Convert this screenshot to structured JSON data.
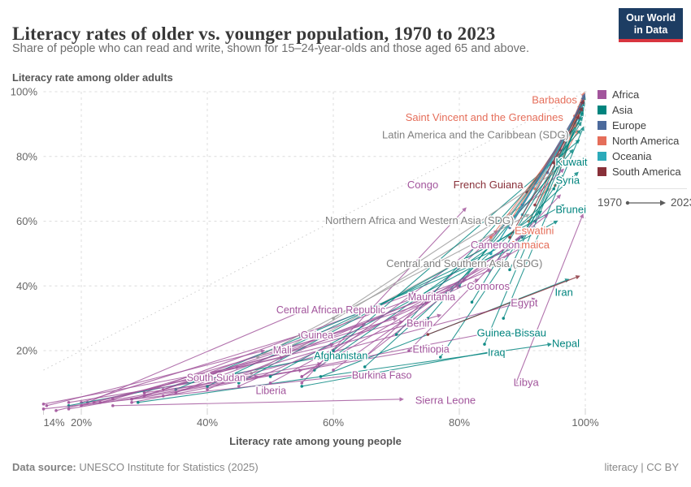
{
  "header": {
    "title": "Literacy rates of older vs. younger population, 1970 to 2023",
    "subtitle": "Share of people who can read and write, shown for 15–24-year-olds and those aged 65 and above.",
    "logo": {
      "line1": "Our World",
      "line2": "in Data"
    }
  },
  "footer": {
    "source_prefix": "Data source:",
    "source_text": " UNESCO Institute for Statistics (2025)",
    "right": "literacy | CC BY"
  },
  "chart_data": {
    "type": "connected-scatter",
    "title": "Literacy rates of older vs. younger population, 1970 to 2023",
    "x_axis": {
      "label": "Literacy rate among young people",
      "ticks": [
        14,
        20,
        40,
        60,
        80,
        100
      ],
      "range": [
        14,
        100
      ],
      "unit": "%"
    },
    "y_axis": {
      "label": "Literacy rate among older adults",
      "ticks": [
        20,
        40,
        60,
        80,
        100
      ],
      "range": [
        0,
        100
      ],
      "unit": "%"
    },
    "time": {
      "start": "1970",
      "end": "2023"
    },
    "grid": "dashed",
    "diagonal": {
      "from": [
        14,
        14
      ],
      "to": [
        100,
        100
      ]
    },
    "colors": {
      "africa": "#a2559c",
      "asia": "#00847e",
      "europe": "#4c6a9c",
      "north_america": "#e56e5a",
      "oceania": "#2caaba",
      "south_america": "#883039",
      "sdg": "#9a9a9a"
    },
    "legend": [
      {
        "label": "Africa",
        "color": "#a2559c"
      },
      {
        "label": "Asia",
        "color": "#00847e"
      },
      {
        "label": "Europe",
        "color": "#4c6a9c"
      },
      {
        "label": "North America",
        "color": "#e56e5a"
      },
      {
        "label": "Oceania",
        "color": "#2caaba"
      },
      {
        "label": "South America",
        "color": "#883039"
      }
    ],
    "series": [
      {
        "n": "Barbados",
        "c": "north_america",
        "s": [
          98.3,
          92.5
        ],
        "e": [
          99.8,
          99.6
        ],
        "l": {
          "x": 98.7,
          "y": 97.4,
          "a": "end",
          "sz": 13
        }
      },
      {
        "n": "Saint Vincent and the Grenadines",
        "c": "north_america",
        "s": [
          95.2,
          71
        ],
        "e": [
          99.2,
          96
        ],
        "l": {
          "x": 96.5,
          "y": 92.0,
          "a": "end",
          "sz": 13
        }
      },
      {
        "n": "Latin America and the Caribbean (SDG)",
        "c": "sdg",
        "s": [
          85,
          54
        ],
        "e": [
          98.8,
          90.5
        ],
        "l": {
          "x": 97.4,
          "y": 86.6,
          "a": "end",
          "sz": 13,
          "col": "#808080"
        }
      },
      {
        "n": "Kuwait",
        "c": "asia",
        "s": [
          84,
          22
        ],
        "e": [
          99.6,
          94
        ],
        "l": {
          "x": 97.8,
          "y": 78.2,
          "a": "middle",
          "sz": 13
        }
      },
      {
        "n": "Syria",
        "c": "asia",
        "s": [
          77,
          18
        ],
        "e": [
          96.3,
          74
        ],
        "l": {
          "x": 97.2,
          "y": 72.6,
          "a": "middle",
          "sz": 13
        }
      },
      {
        "n": "Congo",
        "c": "africa",
        "s": [
          55,
          10
        ],
        "e": [
          81,
          64
        ],
        "l": {
          "x": 74.2,
          "y": 71.2,
          "a": "middle",
          "sz": 13
        }
      },
      {
        "n": "French Guiana",
        "c": "south_america",
        "s": [
          90.7,
          69
        ],
        "e": [
          99,
          93
        ],
        "l": {
          "x": 84.6,
          "y": 71.2,
          "a": "middle",
          "sz": 13
        }
      },
      {
        "n": "Brunei",
        "c": "asia",
        "s": [
          87,
          30
        ],
        "e": [
          99.7,
          89
        ],
        "l": {
          "x": 97.7,
          "y": 63.5,
          "a": "middle",
          "sz": 13
        }
      },
      {
        "n": "Northern Africa and Western Asia (SDG)",
        "c": "sdg",
        "s": [
          52,
          20
        ],
        "e": [
          94.5,
          70
        ],
        "l": {
          "x": 73.7,
          "y": 60.1,
          "a": "middle",
          "sz": 13,
          "col": "#808080"
        }
      },
      {
        "n": "Eswatini",
        "c": "africa",
        "s": [
          65,
          18
        ],
        "e": [
          96.5,
          76
        ],
        "l": {
          "x": 91.9,
          "y": 57.0,
          "a": "middle",
          "sz": 13,
          "col": "#e56e5a"
        }
      },
      {
        "n": "Jamaica",
        "c": "north_america",
        "s": [
          91,
          60
        ],
        "e": [
          98.8,
          88
        ],
        "l": {
          "x": 91.2,
          "y": 52.6,
          "a": "middle",
          "sz": 13
        }
      },
      {
        "n": "Cameroon",
        "c": "africa",
        "s": [
          55,
          12
        ],
        "e": [
          86,
          57
        ],
        "l": {
          "x": 85.7,
          "y": 52.6,
          "a": "middle",
          "sz": 13
        }
      },
      {
        "n": "Central and Southern Asia (SDG)",
        "c": "sdg",
        "s": [
          47,
          13
        ],
        "e": [
          90,
          58
        ],
        "l": {
          "x": 80.8,
          "y": 46.8,
          "a": "middle",
          "sz": 13,
          "col": "#808080"
        }
      },
      {
        "n": "Comoros",
        "c": "africa",
        "s": [
          33,
          8
        ],
        "e": [
          81,
          42
        ],
        "l": {
          "x": 84.6,
          "y": 39.8,
          "a": "middle",
          "sz": 13
        }
      },
      {
        "n": "Iran",
        "c": "asia",
        "s": [
          58,
          12
        ],
        "e": [
          97.3,
          42
        ],
        "l": {
          "x": 96.6,
          "y": 38.0,
          "a": "middle",
          "sz": 13
        }
      },
      {
        "n": "Mauritania",
        "c": "africa",
        "s": [
          30,
          7
        ],
        "e": [
          73,
          38
        ],
        "l": {
          "x": 75.6,
          "y": 36.5,
          "a": "middle",
          "sz": 12.5
        }
      },
      {
        "n": "Egypt",
        "c": "africa",
        "s": [
          45,
          12
        ],
        "e": [
          92,
          36
        ],
        "l": {
          "x": 90.3,
          "y": 34.7,
          "a": "middle",
          "sz": 13
        }
      },
      {
        "n": "Central African Republic",
        "c": "africa",
        "s": [
          21,
          4
        ],
        "e": [
          56,
          33
        ],
        "l": {
          "x": 59.6,
          "y": 32.5,
          "a": "middle",
          "sz": 12.5
        }
      },
      {
        "n": "Benin",
        "c": "africa",
        "s": [
          23,
          4
        ],
        "e": [
          71,
          29
        ],
        "l": {
          "x": 73.7,
          "y": 28.4,
          "a": "middle",
          "sz": 12.5
        }
      },
      {
        "n": "Guinea-Bissau",
        "c": "africa",
        "s": [
          28,
          4
        ],
        "e": [
          86,
          26
        ],
        "l": {
          "x": 88.3,
          "y": 25.4,
          "a": "middle",
          "sz": 13,
          "col": "#00847e"
        }
      },
      {
        "n": "Guinea",
        "c": "africa",
        "s": [
          20,
          4
        ],
        "e": [
          55,
          25
        ],
        "l": {
          "x": 57.4,
          "y": 24.8,
          "a": "middle",
          "sz": 12.5
        }
      },
      {
        "n": "Mali",
        "c": "africa",
        "s": [
          14.5,
          3
        ],
        "e": [
          49,
          20
        ],
        "l": {
          "x": 51.9,
          "y": 20.1,
          "a": "middle",
          "sz": 12.5
        }
      },
      {
        "n": "Ethiopia",
        "c": "africa",
        "s": [
          28,
          5
        ],
        "e": [
          73,
          20
        ],
        "l": {
          "x": 75.5,
          "y": 20.4,
          "a": "middle",
          "sz": 12.5
        }
      },
      {
        "n": "Nepal",
        "c": "asia",
        "s": [
          29,
          4
        ],
        "e": [
          94.5,
          22
        ],
        "l": {
          "x": 96.9,
          "y": 22.1,
          "a": "middle",
          "sz": 13
        }
      },
      {
        "n": "Afghanistan",
        "c": "asia",
        "s": [
          18,
          3
        ],
        "e": [
          58,
          18
        ],
        "l": {
          "x": 61.2,
          "y": 18.4,
          "a": "middle",
          "sz": 12.5
        }
      },
      {
        "n": "Iraq",
        "c": "asia",
        "s": [
          55,
          9
        ],
        "e": [
          86,
          20
        ],
        "l": {
          "x": 85.9,
          "y": 19.4,
          "a": "middle",
          "sz": 12.5
        }
      },
      {
        "n": "South Sudan",
        "c": "africa",
        "s": [
          18,
          4
        ],
        "e": [
          44,
          12
        ],
        "l": {
          "x": 41.4,
          "y": 11.6,
          "a": "middle",
          "sz": 12.5
        }
      },
      {
        "n": "Burkina Faso",
        "c": "africa",
        "s": [
          14,
          2
        ],
        "e": [
          66,
          13
        ],
        "l": {
          "x": 67.7,
          "y": 12.4,
          "a": "middle",
          "sz": 12.5
        }
      },
      {
        "n": "Libya",
        "c": "africa",
        "s": [
          89,
          10
        ],
        "e": [
          99.6,
          62
        ],
        "l": {
          "x": 90.6,
          "y": 10.1,
          "a": "middle",
          "sz": 13
        }
      },
      {
        "n": "Liberia",
        "c": "africa",
        "s": [
          30,
          7
        ],
        "e": [
          55,
          14
        ],
        "l": {
          "x": 50.1,
          "y": 7.6,
          "a": "middle",
          "sz": 12.5
        }
      },
      {
        "n": "Sierra Leone",
        "c": "africa",
        "s": [
          25,
          3
        ],
        "e": [
          71,
          5
        ],
        "l": {
          "x": 77.8,
          "y": 4.6,
          "a": "middle",
          "sz": 13
        }
      },
      {
        "n": "",
        "c": "asia",
        "s": [
          60,
          20
        ],
        "e": [
          99,
          85
        ]
      },
      {
        "n": "",
        "c": "asia",
        "s": [
          70,
          25
        ],
        "e": [
          99.2,
          88
        ]
      },
      {
        "n": "",
        "c": "asia",
        "s": [
          45,
          10
        ],
        "e": [
          96.5,
          65
        ]
      },
      {
        "n": "",
        "c": "asia",
        "s": [
          80,
          40
        ],
        "e": [
          99.5,
          92
        ]
      },
      {
        "n": "",
        "c": "asia",
        "s": [
          85,
          50
        ],
        "e": [
          99.7,
          95
        ]
      },
      {
        "n": "",
        "c": "asia",
        "s": [
          90,
          55
        ],
        "e": [
          99.8,
          96.5
        ]
      },
      {
        "n": "",
        "c": "asia",
        "s": [
          75,
          30
        ],
        "e": [
          98,
          82
        ]
      },
      {
        "n": "",
        "c": "asia",
        "s": [
          65,
          15
        ],
        "e": [
          98.8,
          75
        ]
      },
      {
        "n": "",
        "c": "asia",
        "s": [
          50,
          12
        ],
        "e": [
          95.5,
          60
        ]
      },
      {
        "n": "",
        "c": "asia",
        "s": [
          88,
          45
        ],
        "e": [
          99.6,
          93.5
        ]
      },
      {
        "n": "",
        "c": "asia",
        "s": [
          92,
          60
        ],
        "e": [
          99.8,
          97.5
        ]
      },
      {
        "n": "",
        "c": "asia",
        "s": [
          35,
          8
        ],
        "e": [
          89,
          52
        ]
      },
      {
        "n": "",
        "c": "asia",
        "s": [
          95,
          70
        ],
        "e": [
          99.9,
          98.5
        ]
      },
      {
        "n": "",
        "c": "asia",
        "s": [
          82,
          35
        ],
        "e": [
          99.3,
          90.5
        ]
      },
      {
        "n": "",
        "c": "asia",
        "s": [
          57,
          14
        ],
        "e": [
          93,
          63
        ]
      },
      {
        "n": "",
        "c": "asia",
        "s": [
          40,
          9
        ],
        "e": [
          92,
          57
        ]
      },
      {
        "n": "",
        "c": "africa",
        "s": [
          14,
          3.5
        ],
        "e": [
          45,
          15
        ]
      },
      {
        "n": "",
        "c": "africa",
        "s": [
          16,
          1.5
        ],
        "e": [
          52,
          18
        ]
      },
      {
        "n": "",
        "c": "africa",
        "s": [
          22,
          4
        ],
        "e": [
          60,
          22
        ]
      },
      {
        "n": "",
        "c": "africa",
        "s": [
          30,
          6
        ],
        "e": [
          75,
          35
        ]
      },
      {
        "n": "",
        "c": "africa",
        "s": [
          35,
          7
        ],
        "e": [
          80,
          40
        ]
      },
      {
        "n": "",
        "c": "africa",
        "s": [
          40,
          8
        ],
        "e": [
          85,
          45
        ]
      },
      {
        "n": "",
        "c": "africa",
        "s": [
          25,
          5
        ],
        "e": [
          65,
          28
        ]
      },
      {
        "n": "",
        "c": "africa",
        "s": [
          50,
          10
        ],
        "e": [
          88,
          50
        ]
      },
      {
        "n": "",
        "c": "africa",
        "s": [
          60,
          14
        ],
        "e": [
          92,
          58
        ]
      },
      {
        "n": "",
        "c": "africa",
        "s": [
          45,
          9
        ],
        "e": [
          83,
          42
        ]
      },
      {
        "n": "",
        "c": "africa",
        "s": [
          28,
          5
        ],
        "e": [
          70,
          30
        ]
      },
      {
        "n": "",
        "c": "africa",
        "s": [
          55,
          12
        ],
        "e": [
          90,
          52
        ]
      },
      {
        "n": "",
        "c": "africa",
        "s": [
          18,
          2
        ],
        "e": [
          48,
          12
        ]
      },
      {
        "n": "",
        "c": "africa",
        "s": [
          72,
          20
        ],
        "e": [
          96,
          68
        ]
      },
      {
        "n": "",
        "c": "africa",
        "s": [
          65,
          18
        ],
        "e": [
          94,
          62
        ]
      },
      {
        "n": "",
        "c": "africa",
        "s": [
          20,
          3
        ],
        "e": [
          58,
          16
        ]
      },
      {
        "n": "",
        "c": "africa",
        "s": [
          33,
          6
        ],
        "e": [
          77,
          31
        ]
      },
      {
        "n": "",
        "c": "north_america",
        "s": [
          88,
          60
        ],
        "e": [
          99,
          93
        ]
      },
      {
        "n": "",
        "c": "north_america",
        "s": [
          92,
          70
        ],
        "e": [
          99.5,
          96.5
        ]
      },
      {
        "n": "",
        "c": "north_america",
        "s": [
          85,
          55
        ],
        "e": [
          98.5,
          90
        ]
      },
      {
        "n": "",
        "c": "north_america",
        "s": [
          95,
          80
        ],
        "e": [
          99.8,
          98
        ]
      },
      {
        "n": "",
        "c": "europe",
        "s": [
          90,
          65
        ],
        "e": [
          99.7,
          97
        ]
      },
      {
        "n": "",
        "c": "europe",
        "s": [
          94,
          75
        ],
        "e": [
          99.8,
          98.5
        ]
      },
      {
        "n": "",
        "c": "europe",
        "s": [
          96,
          82
        ],
        "e": [
          99.9,
          99.2
        ]
      },
      {
        "n": "",
        "c": "europe",
        "s": [
          88,
          58
        ],
        "e": [
          99.5,
          95.5
        ]
      },
      {
        "n": "",
        "c": "oceania",
        "s": [
          85,
          50
        ],
        "e": [
          99,
          92
        ]
      },
      {
        "n": "",
        "c": "oceania",
        "s": [
          90,
          62
        ],
        "e": [
          99.5,
          96
        ]
      },
      {
        "n": "",
        "c": "south_america",
        "s": [
          88,
          55
        ],
        "e": [
          99,
          92.5
        ]
      },
      {
        "n": "",
        "c": "south_america",
        "s": [
          92,
          65
        ],
        "e": [
          99.5,
          95
        ]
      },
      {
        "n": "",
        "c": "south_america",
        "s": [
          75,
          25
        ],
        "e": [
          99,
          43
        ]
      },
      {
        "n": "",
        "c": "south_america",
        "s": [
          95,
          78
        ],
        "e": [
          99.7,
          97.2
        ]
      },
      {
        "n": "",
        "c": "sdg",
        "s": [
          60,
          30
        ],
        "e": [
          95,
          75
        ]
      },
      {
        "n": "",
        "c": "sdg",
        "s": [
          48,
          18
        ],
        "e": [
          91,
          62
        ]
      }
    ]
  }
}
